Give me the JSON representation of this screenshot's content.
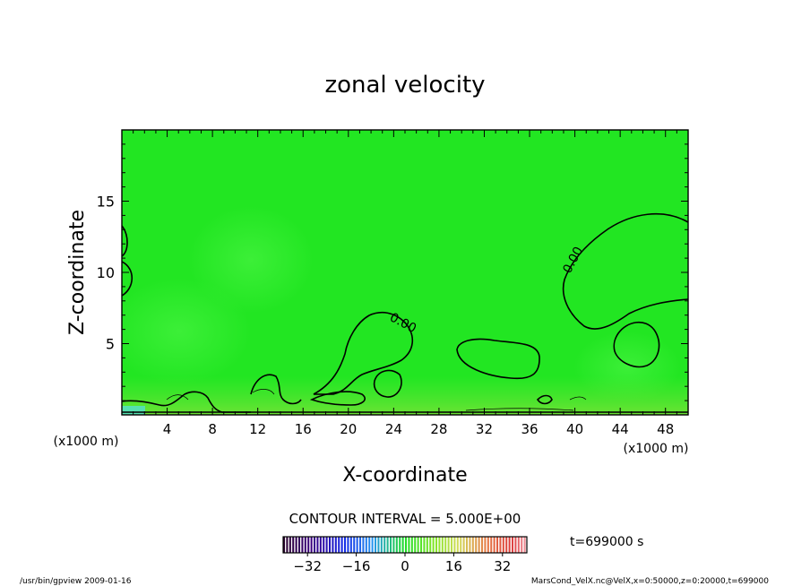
{
  "chart_data": {
    "type": "heatmap",
    "title": "zonal velocity",
    "xlabel": "X-coordinate",
    "ylabel": "Z-coordinate",
    "x_unit": "(x1000 m)",
    "y_unit": "(x1000 m)",
    "xlim": [
      0,
      50
    ],
    "ylim": [
      0,
      20
    ],
    "x_ticks": [
      4,
      8,
      12,
      16,
      20,
      24,
      28,
      32,
      36,
      40,
      44,
      48
    ],
    "y_ticks": [
      5,
      10,
      15
    ],
    "contour_label": "0.00",
    "contour_interval_text": "CONTOUR INTERVAL = 5.000E+00",
    "time_text": "t=699000 s",
    "colorbar": {
      "range": [
        -40,
        40
      ],
      "ticks": [
        -32,
        -16,
        0,
        16,
        32
      ]
    },
    "field_color": "#22e622"
  },
  "footer": {
    "left": "/usr/bin/gpview  2009-01-16",
    "right": "MarsCond_VelX.nc@VelX,x=0:50000,z=0:20000,t=699000"
  }
}
